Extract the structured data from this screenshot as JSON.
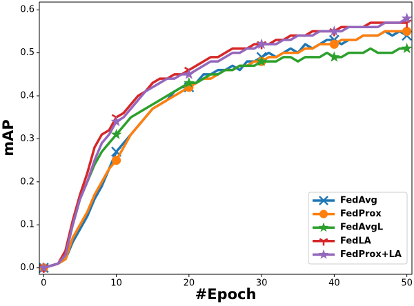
{
  "chart_data": {
    "type": "line",
    "x_label": "#Epoch",
    "y_label": "mAP",
    "x": [
      0,
      1,
      2,
      3,
      4,
      5,
      6,
      7,
      8,
      9,
      10,
      11,
      12,
      13,
      14,
      15,
      16,
      17,
      18,
      19,
      20,
      21,
      22,
      23,
      24,
      25,
      26,
      27,
      28,
      29,
      30,
      31,
      32,
      33,
      34,
      35,
      36,
      37,
      38,
      39,
      40,
      41,
      42,
      43,
      44,
      45,
      46,
      47,
      48,
      49,
      50
    ],
    "series": [
      {
        "name": "FedAvg",
        "color": "#1f77b4",
        "marker": "x",
        "values": [
          0,
          0.005,
          0.01,
          0.02,
          0.06,
          0.09,
          0.12,
          0.16,
          0.19,
          0.23,
          0.27,
          0.29,
          0.31,
          0.33,
          0.35,
          0.37,
          0.38,
          0.39,
          0.41,
          0.42,
          0.42,
          0.43,
          0.45,
          0.45,
          0.46,
          0.46,
          0.47,
          0.46,
          0.48,
          0.48,
          0.49,
          0.5,
          0.49,
          0.5,
          0.51,
          0.5,
          0.52,
          0.51,
          0.52,
          0.53,
          0.53,
          0.52,
          0.53,
          0.53,
          0.54,
          0.54,
          0.54,
          0.55,
          0.54,
          0.55,
          0.54
        ]
      },
      {
        "name": "FedProx",
        "color": "#ff7f0e",
        "marker": "circle",
        "values": [
          0,
          0.005,
          0.01,
          0.02,
          0.07,
          0.1,
          0.13,
          0.17,
          0.2,
          0.23,
          0.25,
          0.28,
          0.31,
          0.33,
          0.35,
          0.37,
          0.38,
          0.39,
          0.4,
          0.41,
          0.42,
          0.43,
          0.44,
          0.44,
          0.45,
          0.46,
          0.46,
          0.47,
          0.47,
          0.48,
          0.48,
          0.49,
          0.49,
          0.5,
          0.5,
          0.5,
          0.51,
          0.51,
          0.52,
          0.52,
          0.52,
          0.53,
          0.53,
          0.53,
          0.54,
          0.54,
          0.54,
          0.55,
          0.55,
          0.55,
          0.55
        ]
      },
      {
        "name": "FedAvgL",
        "color": "#2ca02c",
        "marker": "star",
        "values": [
          0,
          0.005,
          0.01,
          0.03,
          0.1,
          0.16,
          0.2,
          0.24,
          0.27,
          0.29,
          0.31,
          0.33,
          0.35,
          0.36,
          0.37,
          0.38,
          0.39,
          0.4,
          0.41,
          0.42,
          0.43,
          0.43,
          0.44,
          0.45,
          0.45,
          0.46,
          0.46,
          0.47,
          0.47,
          0.47,
          0.48,
          0.48,
          0.48,
          0.49,
          0.49,
          0.48,
          0.49,
          0.49,
          0.49,
          0.5,
          0.49,
          0.49,
          0.5,
          0.5,
          0.5,
          0.51,
          0.5,
          0.5,
          0.5,
          0.51,
          0.51
        ]
      },
      {
        "name": "FedLA",
        "color": "#d62728",
        "marker": "tri_down",
        "values": [
          0,
          0.005,
          0.01,
          0.04,
          0.11,
          0.17,
          0.22,
          0.28,
          0.31,
          0.32,
          0.35,
          0.36,
          0.38,
          0.4,
          0.41,
          0.43,
          0.44,
          0.44,
          0.45,
          0.45,
          0.46,
          0.47,
          0.48,
          0.49,
          0.49,
          0.5,
          0.51,
          0.51,
          0.51,
          0.52,
          0.52,
          0.52,
          0.53,
          0.53,
          0.54,
          0.54,
          0.54,
          0.55,
          0.55,
          0.55,
          0.55,
          0.56,
          0.56,
          0.56,
          0.56,
          0.57,
          0.57,
          0.57,
          0.57,
          0.57,
          0.57
        ]
      },
      {
        "name": "FedProx+LA",
        "color": "#9467bd",
        "marker": "star",
        "values": [
          0,
          0.005,
          0.01,
          0.03,
          0.1,
          0.16,
          0.2,
          0.25,
          0.29,
          0.31,
          0.34,
          0.35,
          0.37,
          0.39,
          0.41,
          0.42,
          0.43,
          0.44,
          0.44,
          0.45,
          0.45,
          0.46,
          0.47,
          0.48,
          0.48,
          0.49,
          0.5,
          0.5,
          0.51,
          0.51,
          0.52,
          0.52,
          0.52,
          0.53,
          0.53,
          0.54,
          0.54,
          0.54,
          0.55,
          0.55,
          0.55,
          0.55,
          0.56,
          0.56,
          0.56,
          0.56,
          0.56,
          0.57,
          0.57,
          0.57,
          0.58
        ]
      }
    ],
    "markevery": 10,
    "xlim": [
      -0.6,
      50.7
    ],
    "ylim": [
      -0.015,
      0.618
    ],
    "xticks": [
      0,
      10,
      20,
      30,
      40,
      50
    ],
    "yticks": [
      {
        "value": 0,
        "label": "0.0"
      },
      0.1,
      0.2,
      0.3,
      0.4,
      0.5,
      0.6
    ],
    "grid": false,
    "legend": "lower right"
  }
}
